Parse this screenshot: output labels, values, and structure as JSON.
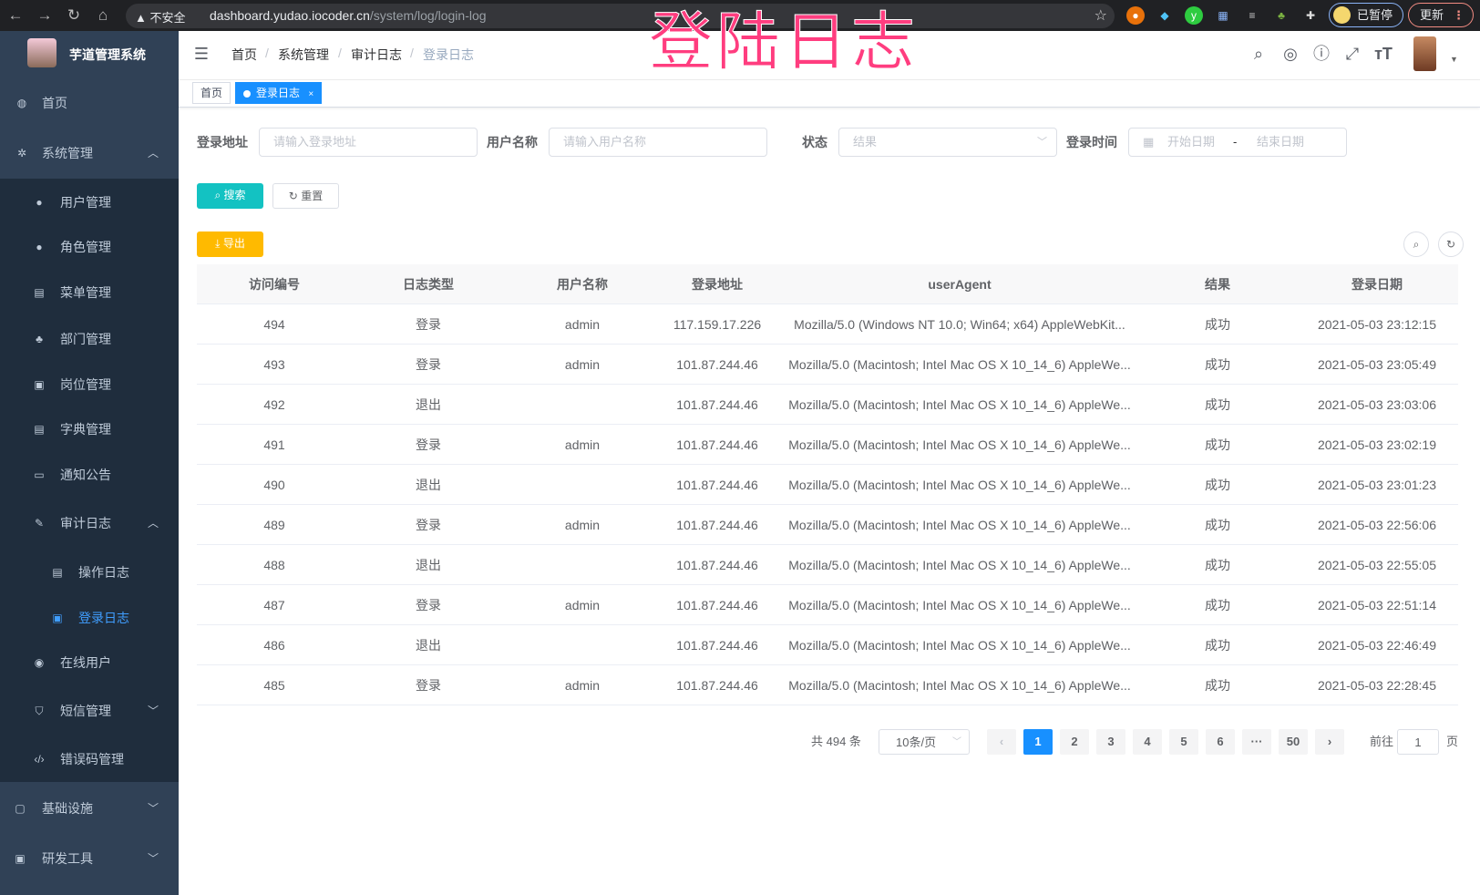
{
  "browser": {
    "security": "不安全",
    "url_host": "dashboard.yudao.iocoder.cn",
    "url_path": "/system/log/login-log",
    "paused": "已暂停",
    "update": "更新"
  },
  "overlay_title": "登陆日志",
  "sidebar": {
    "title": "芋道管理系统",
    "items": [
      {
        "label": "首页",
        "icon": "dashboard-icon"
      },
      {
        "label": "系统管理",
        "icon": "gear-icon"
      },
      {
        "label": "用户管理",
        "icon": "user-icon"
      },
      {
        "label": "角色管理",
        "icon": "peoples-icon"
      },
      {
        "label": "菜单管理",
        "icon": "tree-table-icon"
      },
      {
        "label": "部门管理",
        "icon": "tree-icon"
      },
      {
        "label": "岗位管理",
        "icon": "post-icon"
      },
      {
        "label": "字典管理",
        "icon": "dict-icon"
      },
      {
        "label": "通知公告",
        "icon": "message-icon"
      },
      {
        "label": "审计日志",
        "icon": "log-icon"
      },
      {
        "label": "操作日志",
        "icon": "form-icon"
      },
      {
        "label": "登录日志",
        "icon": "logininfor-icon"
      },
      {
        "label": "在线用户",
        "icon": "online-icon"
      },
      {
        "label": "短信管理",
        "icon": "shield-icon"
      },
      {
        "label": "错误码管理",
        "icon": "code-icon"
      },
      {
        "label": "基础设施",
        "icon": "monitor-icon"
      },
      {
        "label": "研发工具",
        "icon": "tool-icon"
      }
    ]
  },
  "breadcrumb": [
    "首页",
    "系统管理",
    "审计日志",
    "登录日志"
  ],
  "tags": [
    "首页",
    "登录日志"
  ],
  "filters": {
    "ip_label": "登录地址",
    "ip_placeholder": "请输入登录地址",
    "user_label": "用户名称",
    "user_placeholder": "请输入用户名称",
    "status_label": "状态",
    "status_placeholder": "结果",
    "time_label": "登录时间",
    "start_placeholder": "开始日期",
    "range_sep": "-",
    "end_placeholder": "结束日期"
  },
  "buttons": {
    "search": "搜索",
    "reset": "重置",
    "export": "导出"
  },
  "colors": {
    "sidebar": "#304156",
    "submenu": "#1f2d3d",
    "primary": "#1890ff",
    "search": "#13c2c2",
    "export": "#ffba00"
  },
  "table": {
    "columns": [
      "访问编号",
      "日志类型",
      "用户名称",
      "登录地址",
      "userAgent",
      "结果",
      "登录日期"
    ],
    "rows": [
      [
        "494",
        "登录",
        "admin",
        "117.159.17.226",
        "Mozilla/5.0 (Windows NT 10.0; Win64; x64) AppleWebKit...",
        "成功",
        "2021-05-03 23:12:15"
      ],
      [
        "493",
        "登录",
        "admin",
        "101.87.244.46",
        "Mozilla/5.0 (Macintosh; Intel Mac OS X 10_14_6) AppleWe...",
        "成功",
        "2021-05-03 23:05:49"
      ],
      [
        "492",
        "退出",
        "",
        "101.87.244.46",
        "Mozilla/5.0 (Macintosh; Intel Mac OS X 10_14_6) AppleWe...",
        "成功",
        "2021-05-03 23:03:06"
      ],
      [
        "491",
        "登录",
        "admin",
        "101.87.244.46",
        "Mozilla/5.0 (Macintosh; Intel Mac OS X 10_14_6) AppleWe...",
        "成功",
        "2021-05-03 23:02:19"
      ],
      [
        "490",
        "退出",
        "",
        "101.87.244.46",
        "Mozilla/5.0 (Macintosh; Intel Mac OS X 10_14_6) AppleWe...",
        "成功",
        "2021-05-03 23:01:23"
      ],
      [
        "489",
        "登录",
        "admin",
        "101.87.244.46",
        "Mozilla/5.0 (Macintosh; Intel Mac OS X 10_14_6) AppleWe...",
        "成功",
        "2021-05-03 22:56:06"
      ],
      [
        "488",
        "退出",
        "",
        "101.87.244.46",
        "Mozilla/5.0 (Macintosh; Intel Mac OS X 10_14_6) AppleWe...",
        "成功",
        "2021-05-03 22:55:05"
      ],
      [
        "487",
        "登录",
        "admin",
        "101.87.244.46",
        "Mozilla/5.0 (Macintosh; Intel Mac OS X 10_14_6) AppleWe...",
        "成功",
        "2021-05-03 22:51:14"
      ],
      [
        "486",
        "退出",
        "",
        "101.87.244.46",
        "Mozilla/5.0 (Macintosh; Intel Mac OS X 10_14_6) AppleWe...",
        "成功",
        "2021-05-03 22:46:49"
      ],
      [
        "485",
        "登录",
        "admin",
        "101.87.244.46",
        "Mozilla/5.0 (Macintosh; Intel Mac OS X 10_14_6) AppleWe...",
        "成功",
        "2021-05-03 22:28:45"
      ]
    ]
  },
  "pagination": {
    "total": "共 494 条",
    "page_size": "10条/页",
    "pages": [
      "1",
      "2",
      "3",
      "4",
      "5",
      "6",
      "···",
      "50"
    ],
    "current": "1",
    "goto_label": "前往",
    "goto_value": "1",
    "goto_suffix": "页"
  }
}
